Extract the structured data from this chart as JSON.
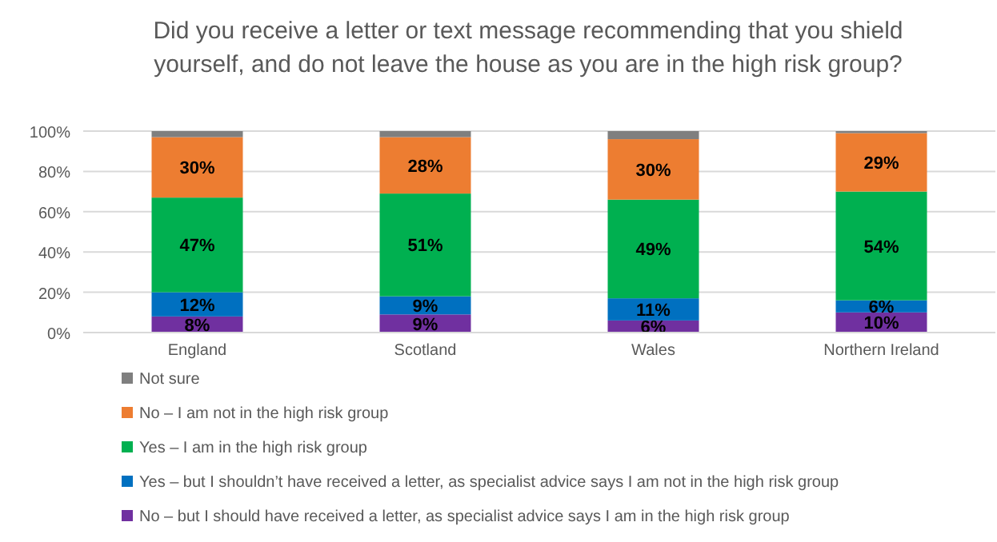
{
  "chart_data": {
    "type": "bar",
    "stacked": true,
    "title": "Did you receive a letter or text message recommending that you shield yourself, and do not leave the house as you are in the high risk group?",
    "categories": [
      "England",
      "Scotland",
      "Wales",
      "Northern Ireland"
    ],
    "ylim": [
      0,
      100
    ],
    "yticks": [
      {
        "value": 0,
        "label": "0%"
      },
      {
        "value": 20,
        "label": "20%"
      },
      {
        "value": 40,
        "label": "40%"
      },
      {
        "value": 60,
        "label": "60%"
      },
      {
        "value": 80,
        "label": "80%"
      },
      {
        "value": 100,
        "label": "100%"
      }
    ],
    "grid": "y",
    "legend": "bottom",
    "series": [
      {
        "name": "No – but I should have received a letter, as specialist advice says I am in the high risk group",
        "color": "#7030a0",
        "values": [
          8,
          9,
          6,
          10
        ],
        "value_labels": [
          "8%",
          "9%",
          "6%",
          "10%"
        ]
      },
      {
        "name": "Yes – but I shouldn’t have received a letter, as specialist advice says I am not in the high risk group",
        "color": "#0070c0",
        "values": [
          12,
          9,
          11,
          6
        ],
        "value_labels": [
          "12%",
          "9%",
          "11%",
          "6%"
        ]
      },
      {
        "name": "Yes – I am in the high risk group",
        "color": "#00b050",
        "values": [
          47,
          51,
          49,
          54
        ],
        "value_labels": [
          "47%",
          "51%",
          "49%",
          "54%"
        ]
      },
      {
        "name": "No – I am not in the high risk group",
        "color": "#ed7d31",
        "values": [
          30,
          28,
          30,
          29
        ],
        "value_labels": [
          "30%",
          "28%",
          "30%",
          "29%"
        ]
      },
      {
        "name": "Not sure",
        "color": "#7f7f7f",
        "values": [
          3,
          3,
          4,
          1
        ],
        "value_labels": [
          null,
          null,
          null,
          null
        ]
      }
    ]
  }
}
